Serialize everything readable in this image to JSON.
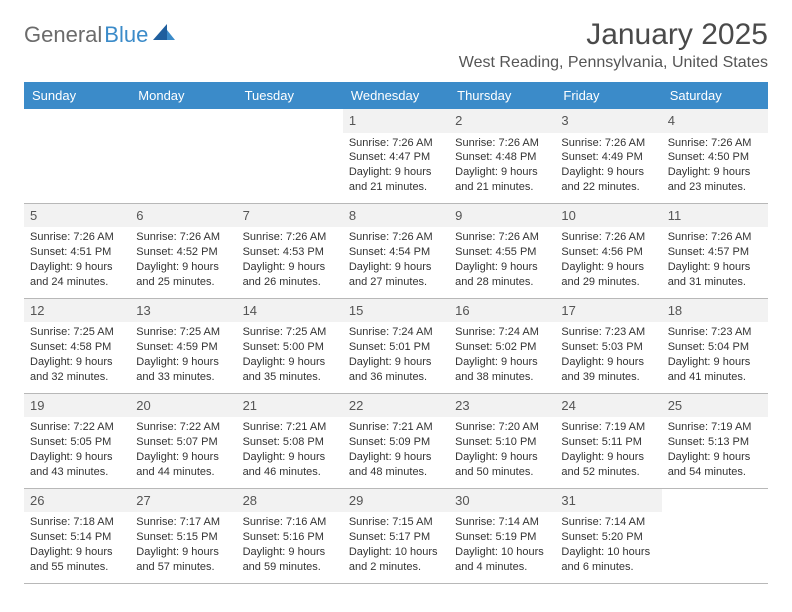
{
  "logo": {
    "part1": "General",
    "part2": "Blue"
  },
  "title": "January 2025",
  "location": "West Reading, Pennsylvania, United States",
  "colors": {
    "header_bg": "#3b8bc9",
    "header_text": "#ffffff",
    "row_top_border": "#3b6b8f",
    "row_bottom_border": "#b8b8b8",
    "daynum_bg": "#f2f2f2",
    "logo_gray": "#6b6b6b",
    "logo_blue": "#3b8bc9"
  },
  "weekdays": [
    "Sunday",
    "Monday",
    "Tuesday",
    "Wednesday",
    "Thursday",
    "Friday",
    "Saturday"
  ],
  "cells": [
    {
      "day": "",
      "lines": []
    },
    {
      "day": "",
      "lines": []
    },
    {
      "day": "",
      "lines": []
    },
    {
      "day": "1",
      "lines": [
        "Sunrise: 7:26 AM",
        "Sunset: 4:47 PM",
        "Daylight: 9 hours",
        "and 21 minutes."
      ]
    },
    {
      "day": "2",
      "lines": [
        "Sunrise: 7:26 AM",
        "Sunset: 4:48 PM",
        "Daylight: 9 hours",
        "and 21 minutes."
      ]
    },
    {
      "day": "3",
      "lines": [
        "Sunrise: 7:26 AM",
        "Sunset: 4:49 PM",
        "Daylight: 9 hours",
        "and 22 minutes."
      ]
    },
    {
      "day": "4",
      "lines": [
        "Sunrise: 7:26 AM",
        "Sunset: 4:50 PM",
        "Daylight: 9 hours",
        "and 23 minutes."
      ]
    },
    {
      "day": "5",
      "lines": [
        "Sunrise: 7:26 AM",
        "Sunset: 4:51 PM",
        "Daylight: 9 hours",
        "and 24 minutes."
      ]
    },
    {
      "day": "6",
      "lines": [
        "Sunrise: 7:26 AM",
        "Sunset: 4:52 PM",
        "Daylight: 9 hours",
        "and 25 minutes."
      ]
    },
    {
      "day": "7",
      "lines": [
        "Sunrise: 7:26 AM",
        "Sunset: 4:53 PM",
        "Daylight: 9 hours",
        "and 26 minutes."
      ]
    },
    {
      "day": "8",
      "lines": [
        "Sunrise: 7:26 AM",
        "Sunset: 4:54 PM",
        "Daylight: 9 hours",
        "and 27 minutes."
      ]
    },
    {
      "day": "9",
      "lines": [
        "Sunrise: 7:26 AM",
        "Sunset: 4:55 PM",
        "Daylight: 9 hours",
        "and 28 minutes."
      ]
    },
    {
      "day": "10",
      "lines": [
        "Sunrise: 7:26 AM",
        "Sunset: 4:56 PM",
        "Daylight: 9 hours",
        "and 29 minutes."
      ]
    },
    {
      "day": "11",
      "lines": [
        "Sunrise: 7:26 AM",
        "Sunset: 4:57 PM",
        "Daylight: 9 hours",
        "and 31 minutes."
      ]
    },
    {
      "day": "12",
      "lines": [
        "Sunrise: 7:25 AM",
        "Sunset: 4:58 PM",
        "Daylight: 9 hours",
        "and 32 minutes."
      ]
    },
    {
      "day": "13",
      "lines": [
        "Sunrise: 7:25 AM",
        "Sunset: 4:59 PM",
        "Daylight: 9 hours",
        "and 33 minutes."
      ]
    },
    {
      "day": "14",
      "lines": [
        "Sunrise: 7:25 AM",
        "Sunset: 5:00 PM",
        "Daylight: 9 hours",
        "and 35 minutes."
      ]
    },
    {
      "day": "15",
      "lines": [
        "Sunrise: 7:24 AM",
        "Sunset: 5:01 PM",
        "Daylight: 9 hours",
        "and 36 minutes."
      ]
    },
    {
      "day": "16",
      "lines": [
        "Sunrise: 7:24 AM",
        "Sunset: 5:02 PM",
        "Daylight: 9 hours",
        "and 38 minutes."
      ]
    },
    {
      "day": "17",
      "lines": [
        "Sunrise: 7:23 AM",
        "Sunset: 5:03 PM",
        "Daylight: 9 hours",
        "and 39 minutes."
      ]
    },
    {
      "day": "18",
      "lines": [
        "Sunrise: 7:23 AM",
        "Sunset: 5:04 PM",
        "Daylight: 9 hours",
        "and 41 minutes."
      ]
    },
    {
      "day": "19",
      "lines": [
        "Sunrise: 7:22 AM",
        "Sunset: 5:05 PM",
        "Daylight: 9 hours",
        "and 43 minutes."
      ]
    },
    {
      "day": "20",
      "lines": [
        "Sunrise: 7:22 AM",
        "Sunset: 5:07 PM",
        "Daylight: 9 hours",
        "and 44 minutes."
      ]
    },
    {
      "day": "21",
      "lines": [
        "Sunrise: 7:21 AM",
        "Sunset: 5:08 PM",
        "Daylight: 9 hours",
        "and 46 minutes."
      ]
    },
    {
      "day": "22",
      "lines": [
        "Sunrise: 7:21 AM",
        "Sunset: 5:09 PM",
        "Daylight: 9 hours",
        "and 48 minutes."
      ]
    },
    {
      "day": "23",
      "lines": [
        "Sunrise: 7:20 AM",
        "Sunset: 5:10 PM",
        "Daylight: 9 hours",
        "and 50 minutes."
      ]
    },
    {
      "day": "24",
      "lines": [
        "Sunrise: 7:19 AM",
        "Sunset: 5:11 PM",
        "Daylight: 9 hours",
        "and 52 minutes."
      ]
    },
    {
      "day": "25",
      "lines": [
        "Sunrise: 7:19 AM",
        "Sunset: 5:13 PM",
        "Daylight: 9 hours",
        "and 54 minutes."
      ]
    },
    {
      "day": "26",
      "lines": [
        "Sunrise: 7:18 AM",
        "Sunset: 5:14 PM",
        "Daylight: 9 hours",
        "and 55 minutes."
      ]
    },
    {
      "day": "27",
      "lines": [
        "Sunrise: 7:17 AM",
        "Sunset: 5:15 PM",
        "Daylight: 9 hours",
        "and 57 minutes."
      ]
    },
    {
      "day": "28",
      "lines": [
        "Sunrise: 7:16 AM",
        "Sunset: 5:16 PM",
        "Daylight: 9 hours",
        "and 59 minutes."
      ]
    },
    {
      "day": "29",
      "lines": [
        "Sunrise: 7:15 AM",
        "Sunset: 5:17 PM",
        "Daylight: 10 hours",
        "and 2 minutes."
      ]
    },
    {
      "day": "30",
      "lines": [
        "Sunrise: 7:14 AM",
        "Sunset: 5:19 PM",
        "Daylight: 10 hours",
        "and 4 minutes."
      ]
    },
    {
      "day": "31",
      "lines": [
        "Sunrise: 7:14 AM",
        "Sunset: 5:20 PM",
        "Daylight: 10 hours",
        "and 6 minutes."
      ]
    },
    {
      "day": "",
      "lines": []
    }
  ]
}
